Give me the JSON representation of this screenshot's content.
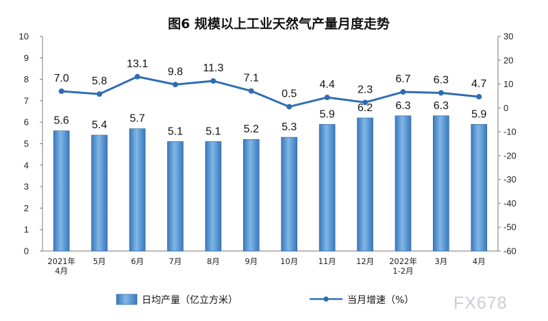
{
  "chart_data": {
    "type": "bar",
    "title": "图6  规模以上工业天然气产量月度走势",
    "categories": [
      [
        "2021年",
        "4月"
      ],
      [
        "5月"
      ],
      [
        "6月"
      ],
      [
        "7月"
      ],
      [
        "8月"
      ],
      [
        "9月"
      ],
      [
        "10月"
      ],
      [
        "11月"
      ],
      [
        "12月"
      ],
      [
        "2022年",
        "1-2月"
      ],
      [
        "3月"
      ],
      [
        "4月"
      ]
    ],
    "series": [
      {
        "name": "日均产量（亿立方米）",
        "type": "bar",
        "axis": "left",
        "color": "#4a90cc",
        "values": [
          5.6,
          5.4,
          5.7,
          5.1,
          5.1,
          5.2,
          5.3,
          5.9,
          6.2,
          6.3,
          6.3,
          5.9
        ],
        "labels": [
          "5.6",
          "5.4",
          "5.7",
          "5.1",
          "5.1",
          "5.2",
          "5.3",
          "5.9",
          "6.2",
          "6.3",
          "6.3",
          "5.9"
        ]
      },
      {
        "name": "当月增速（%）",
        "type": "line",
        "axis": "right",
        "color": "#2f6db5",
        "values": [
          7.0,
          5.8,
          13.1,
          9.8,
          11.3,
          7.1,
          0.5,
          4.4,
          2.3,
          6.7,
          6.3,
          4.7
        ],
        "labels": [
          "7.0",
          "5.8",
          "13.1",
          "9.8",
          "11.3",
          "7.1",
          "0.5",
          "4.4",
          "2.3",
          "6.7",
          "6.3",
          "4.7"
        ]
      }
    ],
    "y_left": {
      "ylim": [
        0,
        10
      ],
      "ticks": [
        "0",
        "1",
        "2",
        "3",
        "4",
        "5",
        "6",
        "7",
        "8",
        "9",
        "10"
      ]
    },
    "y_right": {
      "ylim": [
        -60,
        30
      ],
      "ticks": [
        "-60",
        "-50",
        "-40",
        "-30",
        "-20",
        "-10",
        "0",
        "10",
        "20",
        "30"
      ]
    },
    "grid": false,
    "legend_position": "bottom"
  },
  "watermark": "FX678"
}
